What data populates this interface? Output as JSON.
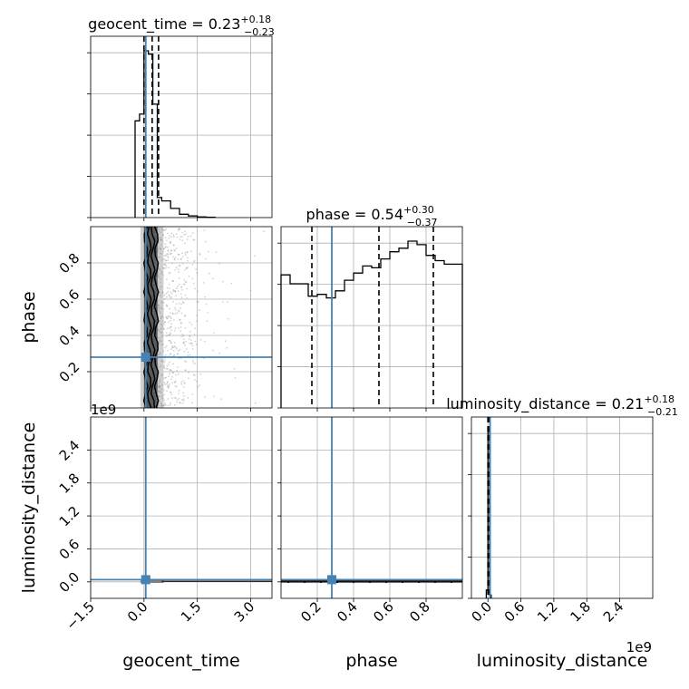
{
  "chart_data": {
    "type": "corner",
    "parameters": [
      "geocent_time",
      "phase",
      "luminosity_distance"
    ],
    "truths": {
      "geocent_time": 0.05,
      "phase": 0.28,
      "luminosity_distance": 40000000.0
    },
    "axis_labels": {
      "x": [
        "geocent_time",
        "phase",
        "luminosity_distance"
      ],
      "y": [
        "phase",
        "luminosity_distance"
      ]
    },
    "ranges": {
      "geocent_time": [
        -1.5,
        3.6
      ],
      "phase": [
        0.0,
        1.0
      ],
      "luminosity_distance": [
        -300000000.0,
        3000000000.0
      ]
    },
    "ticks": {
      "geocent_time": [
        -1.5,
        0.0,
        1.5,
        3.0
      ],
      "geocent_time_labels": [
        "−1.5",
        "0.0",
        "1.5",
        "3.0"
      ],
      "phase_x": [
        0.2,
        0.4,
        0.6,
        0.8
      ],
      "phase_x_labels": [
        "0.2",
        "0.4",
        "0.6",
        "0.8"
      ],
      "phase_y": [
        0.2,
        0.4,
        0.6,
        0.8
      ],
      "phase_y_labels": [
        "0.2",
        "0.4",
        "0.6",
        "0.8"
      ],
      "luminosity_distance": [
        0.0,
        600000000.0,
        1200000000.0,
        1800000000.0,
        2400000000.0
      ],
      "luminosity_distance_labels": [
        "0.0",
        "0.6",
        "1.2",
        "1.8",
        "2.4"
      ]
    },
    "offset_text": "1e9",
    "grid": true,
    "diag_titles": [
      {
        "param": "geocent_time",
        "prefix": "geocent_time = ",
        "value": "0.23",
        "plus": "+0.18",
        "minus": "−0.23"
      },
      {
        "param": "phase",
        "prefix": "phase = ",
        "value": "0.54",
        "plus": "+0.30",
        "minus": "−0.37"
      },
      {
        "param": "luminosity_distance",
        "prefix": "luminosity_distance = ",
        "value": "0.21",
        "plus": "+0.18",
        "minus": "−0.21"
      }
    ],
    "quantile_lines": {
      "geocent_time": [
        0.0,
        0.23,
        0.41
      ],
      "phase": [
        0.17,
        0.54,
        0.84
      ],
      "luminosity_distance": [
        0.0,
        21000000.0,
        39000000.0
      ]
    },
    "histograms": {
      "geocent_time": {
        "edges": [
          -0.25,
          -0.125,
          0.0,
          0.125,
          0.25,
          0.375,
          0.5,
          0.75,
          1.0,
          1.25,
          1.5,
          1.75,
          2.0
        ],
        "counts": [
          0.58,
          0.62,
          1.0,
          0.98,
          0.68,
          0.12,
          0.1,
          0.055,
          0.02,
          0.01,
          0.004,
          0.002
        ]
      },
      "phase": {
        "edges": [
          0.0,
          0.05,
          0.1,
          0.15,
          0.2,
          0.25,
          0.3,
          0.35,
          0.4,
          0.45,
          0.5,
          0.55,
          0.6,
          0.65,
          0.7,
          0.75,
          0.8,
          0.85,
          0.9,
          0.95,
          1.0
        ],
        "counts": [
          0.75,
          0.7,
          0.7,
          0.63,
          0.64,
          0.62,
          0.66,
          0.72,
          0.76,
          0.8,
          0.79,
          0.84,
          0.88,
          0.9,
          0.94,
          0.92,
          0.86,
          0.83,
          0.81,
          0.81
        ]
      },
      "luminosity_distance": {
        "edges": [
          -30000000.0,
          0.0,
          30000000.0,
          60000000.0
        ],
        "counts": [
          0.05,
          1.0,
          0.02
        ]
      }
    },
    "colors": {
      "truth": "#4682b4",
      "line": "#000000",
      "grid": "#b0b0b0",
      "samples": "#808080"
    }
  }
}
